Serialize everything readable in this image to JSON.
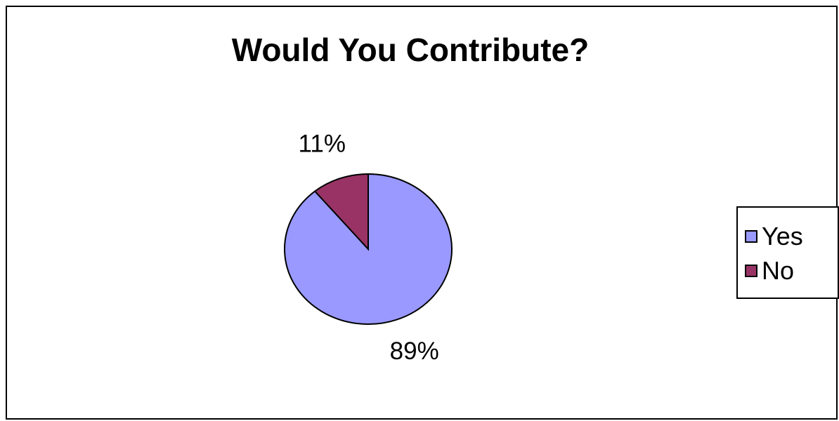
{
  "chart_data": {
    "type": "pie",
    "title": "Would You Contribute?",
    "categories": [
      "Yes",
      "No"
    ],
    "values": [
      89,
      11
    ],
    "labels": [
      "89%",
      "11%"
    ],
    "colors": [
      "#9999ff",
      "#993366"
    ],
    "legend_position": "right"
  }
}
